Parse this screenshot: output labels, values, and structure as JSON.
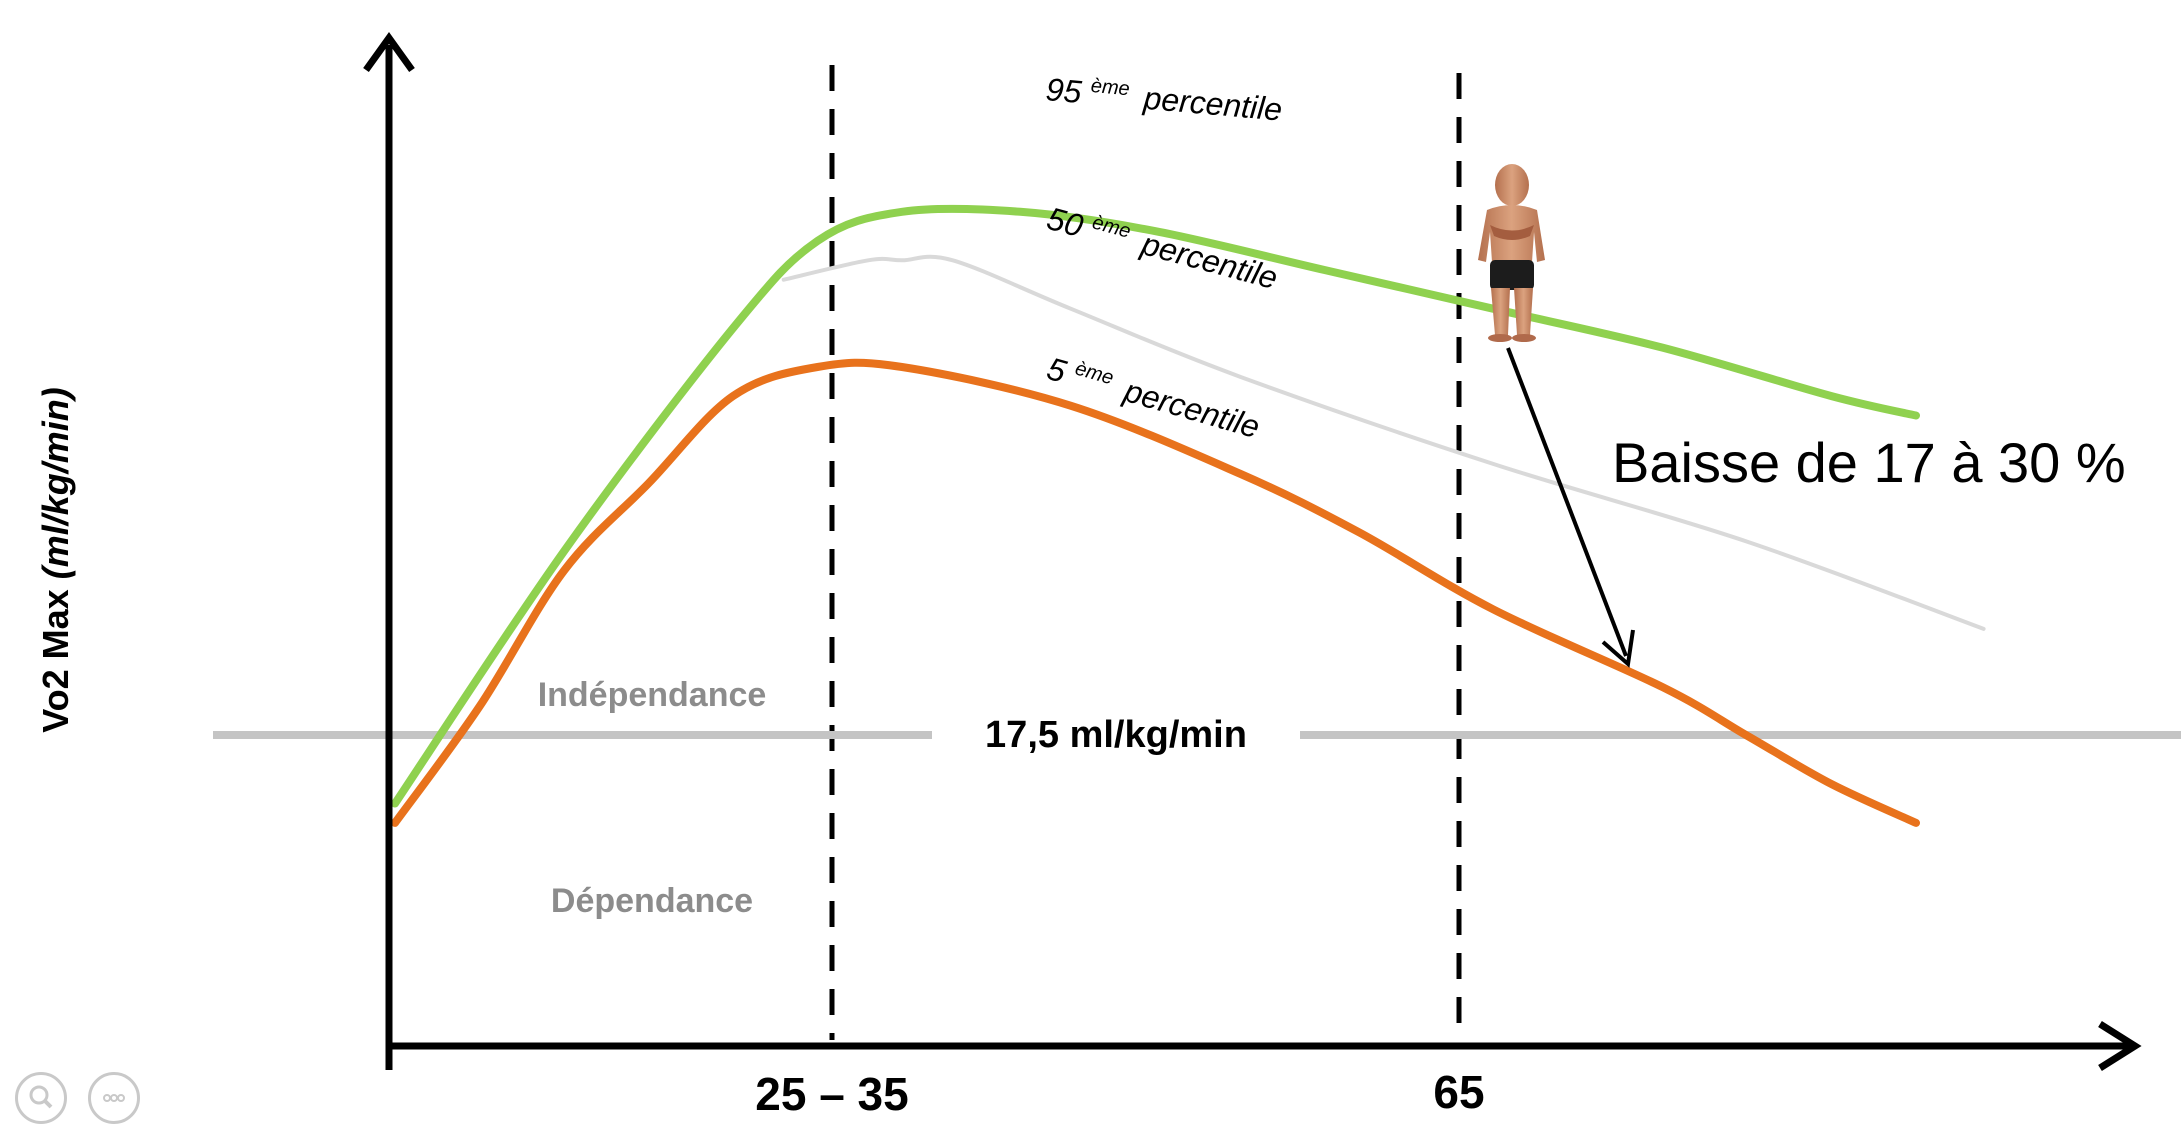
{
  "chart_data": {
    "type": "line",
    "ylabel": "Vo2 Max",
    "ylabel_unit": "(ml/kg/min)",
    "x_ticks": [
      "25 – 35",
      "65"
    ],
    "series": [
      {
        "name": "95 ème percentile",
        "label_main": "95",
        "label_sup": "ème",
        "label_tail": "percentile",
        "color": "#8fd14f",
        "points": [
          [
            0,
            0.25
          ],
          [
            10,
            0.51
          ],
          [
            20,
            0.74
          ],
          [
            25,
            0.83
          ],
          [
            30,
            0.86
          ],
          [
            37,
            0.86
          ],
          [
            45,
            0.84
          ],
          [
            55,
            0.8
          ],
          [
            65,
            0.76
          ],
          [
            75,
            0.72
          ],
          [
            85,
            0.67
          ],
          [
            90,
            0.65
          ]
        ]
      },
      {
        "name": "50 ème percentile",
        "label_main": "50",
        "label_sup": "ème",
        "label_tail": "percentile",
        "color": "#d9d9d9",
        "points": [
          [
            23,
            0.79
          ],
          [
            28,
            0.81
          ],
          [
            30,
            0.81
          ],
          [
            33,
            0.81
          ],
          [
            40,
            0.76
          ],
          [
            50,
            0.69
          ],
          [
            65,
            0.6
          ],
          [
            80,
            0.52
          ],
          [
            94,
            0.43
          ]
        ]
      },
      {
        "name": "5 ème percentile",
        "label_main": "5",
        "label_sup": "ème",
        "label_tail": "percentile",
        "color": "#e8721c",
        "points": [
          [
            0,
            0.23
          ],
          [
            5,
            0.35
          ],
          [
            10,
            0.49
          ],
          [
            15,
            0.58
          ],
          [
            20,
            0.67
          ],
          [
            25,
            0.7
          ],
          [
            30,
            0.7
          ],
          [
            40,
            0.66
          ],
          [
            50,
            0.59
          ],
          [
            57,
            0.53
          ],
          [
            65,
            0.45
          ],
          [
            75,
            0.37
          ],
          [
            80,
            0.32
          ],
          [
            85,
            0.27
          ],
          [
            90,
            0.23
          ]
        ]
      }
    ],
    "threshold": {
      "value": 0.3,
      "label": "17,5 ml/kg/min",
      "above": "Indépendance",
      "below": "Dépendance"
    },
    "annotation": "Baisse de 17 à 30 %"
  },
  "controls": {
    "zoom": "search-icon",
    "more": "more-icon"
  }
}
